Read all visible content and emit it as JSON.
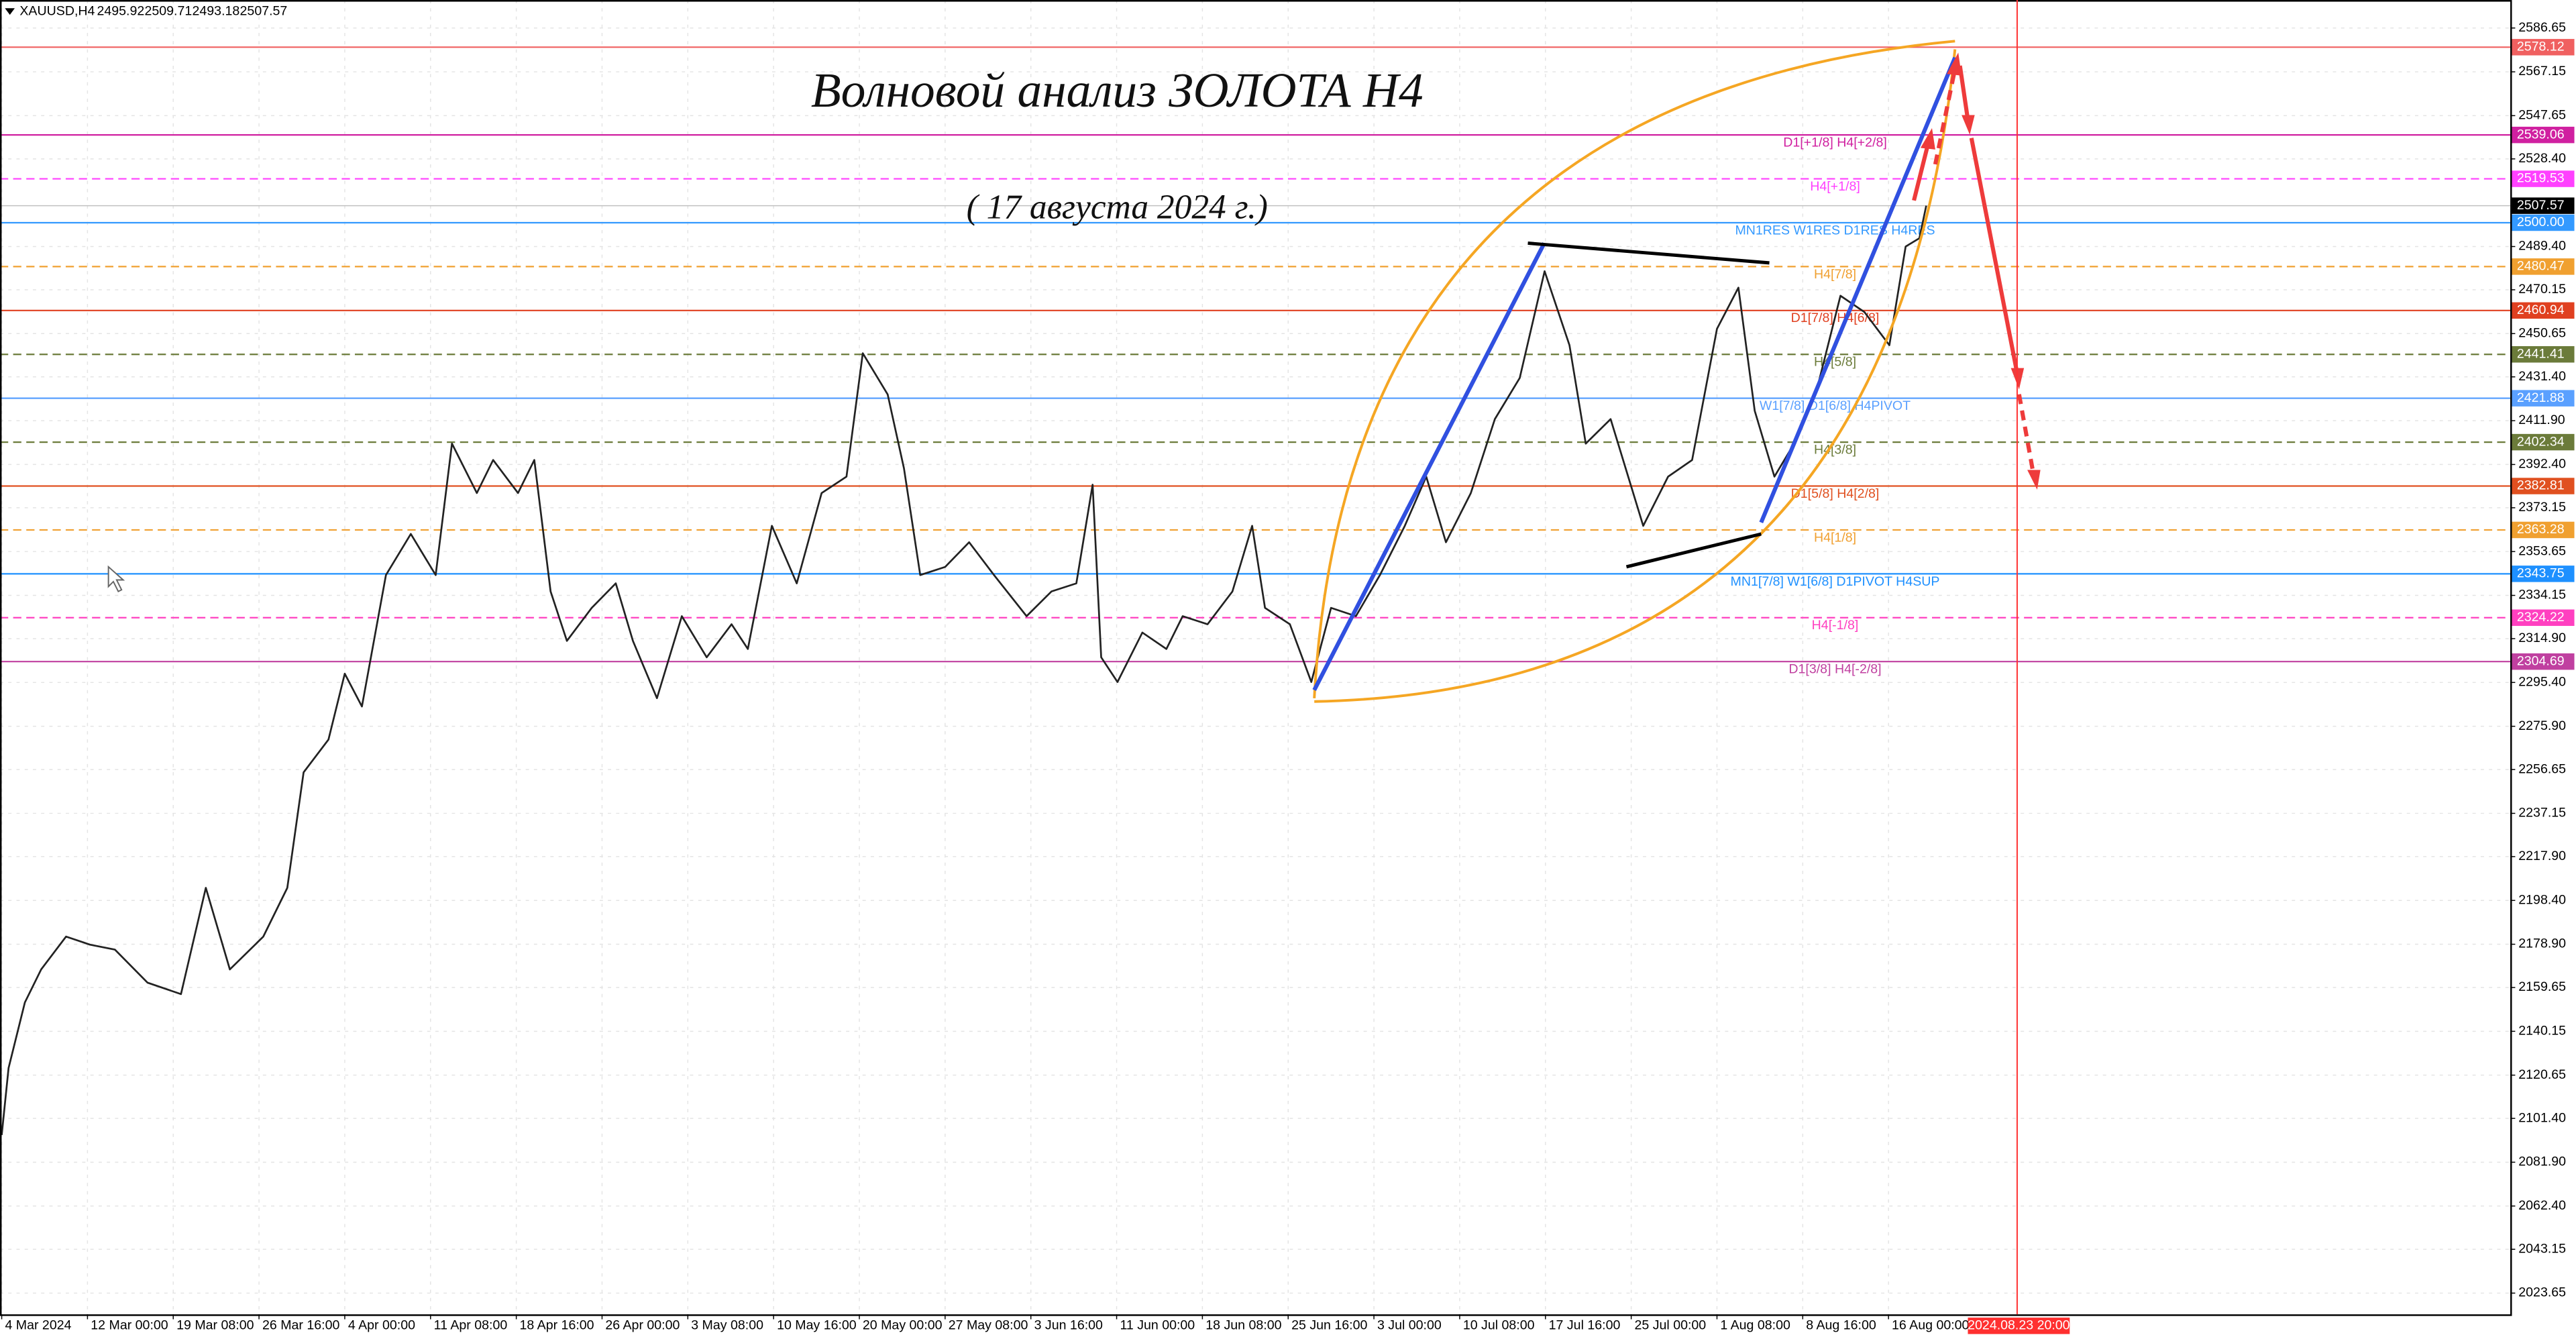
{
  "chart_data": {
    "type": "line",
    "symbol": "XAUUSD,H4",
    "ohlc": [
      2495.92,
      2509.71,
      2493.18,
      2507.57
    ],
    "title": "Волновой анализ ЗОЛОТА H4",
    "subtitle": "( 17 августа 2024 г.)",
    "xlim": [
      -0.02,
      29.25
    ],
    "ylim": [
      2014.2,
      2599.1
    ],
    "grid": true,
    "categories": [
      "4 Mar 2024",
      "12 Mar 00:00",
      "19 Mar 08:00",
      "26 Mar 16:00",
      "4 Apr 00:00",
      "11 Apr 08:00",
      "18 Apr 16:00",
      "26 Apr 00:00",
      "3 May 08:00",
      "10 May 16:00",
      "20 May 00:00",
      "27 May 08:00",
      "3 Jun 16:00",
      "11 Jun 00:00",
      "18 Jun 08:00",
      "25 Jun 16:00",
      "3 Jul 00:00",
      "10 Jul 08:00",
      "17 Jul 16:00",
      "25 Jul 00:00",
      "1 Aug 08:00",
      "8 Aug 16:00",
      "16 Aug 00:00"
    ],
    "marker": {
      "x": 23.5,
      "label": "2024.08.23 20:00",
      "color": "#ff3030"
    },
    "yticks": [
      2586.65,
      2567.15,
      2547.65,
      {
        "value": 2528.4,
        "label": "2528.40"
      },
      {
        "value": 2489.4,
        "label": "2489.40"
      },
      2470.15,
      2450.65,
      {
        "value": 2431.4,
        "label": "2431.40"
      },
      {
        "value": 2411.9,
        "label": "2411.90"
      },
      {
        "value": 2392.4,
        "label": "2392.40"
      },
      2373.15,
      2353.65,
      2334.15,
      {
        "value": 2314.9,
        "label": "2314.90"
      },
      {
        "value": 2295.4,
        "label": "2295.40"
      },
      {
        "value": 2275.9,
        "label": "2275.90"
      },
      2256.65,
      2237.15,
      {
        "value": 2217.9,
        "label": "2217.90"
      },
      {
        "value": 2198.4,
        "label": "2198.40"
      },
      {
        "value": 2178.9,
        "label": "2178.90"
      },
      2159.65,
      2140.15,
      2120.65,
      {
        "value": 2101.4,
        "label": "2101.40"
      },
      {
        "value": 2081.9,
        "label": "2081.90"
      },
      {
        "value": 2062.4,
        "label": "2062.40"
      },
      2043.15,
      2023.65
    ],
    "current_price": 2507.57,
    "levels": [
      {
        "value": 2578.12,
        "color": "#f06060",
        "dash": false
      },
      {
        "value": 2539.06,
        "color": "#d020a0",
        "dash": false,
        "text": "D1[+1/8] H4[+2/8]"
      },
      {
        "value": 2519.53,
        "color": "#ff40ff",
        "dash": true,
        "text": "H4[+1/8]"
      },
      {
        "value": 2500,
        "value_label": "2500.00",
        "color": "#3399ff",
        "dash": false,
        "text": "MN1RES W1RES D1RES H4RES"
      },
      {
        "value": 2480.47,
        "color": "#f0a030",
        "dash": true,
        "text": "H4[7/8]"
      },
      {
        "value": 2460.94,
        "color": "#e04020",
        "dash": false,
        "text": "D1[7/8] H4[6/8]"
      },
      {
        "value": 2441.41,
        "color": "#6b7b3a",
        "dash": true,
        "text": "H4[5/8]"
      },
      {
        "value": 2421.88,
        "color": "#5aa0ff",
        "dash": false,
        "text": "W1[7/8] D1[6/8] H4PIVOT"
      },
      {
        "value": 2402.34,
        "color": "#6b7b3a",
        "dash": true,
        "text": "H4[3/8]"
      },
      {
        "value": 2382.81,
        "color": "#e05020",
        "dash": false,
        "text": "D1[5/8] H4[2/8]"
      },
      {
        "value": 2363.28,
        "color": "#f0a030",
        "dash": true,
        "text": "H4[1/8]"
      },
      {
        "value": 2343.75,
        "color": "#1e90ff",
        "dash": false,
        "text": "MN1[7/8] W1[6/8] D1PIVOT H4SUP"
      },
      {
        "value": 2324.22,
        "color": "#ff40c0",
        "dash": true,
        "text": "H4[-1/8]"
      },
      {
        "value": 2304.69,
        "color": "#c040a0",
        "dash": false,
        "text": "D1[3/8] H4[-2/8]"
      }
    ],
    "series": [
      {
        "name": "XAUUSD",
        "color": "#222222",
        "x": [
          0,
          0.08,
          0.27,
          0.46,
          0.75,
          1.03,
          1.32,
          1.7,
          2.09,
          2.38,
          2.66,
          3.05,
          3.33,
          3.52,
          3.81,
          4.0,
          4.2,
          4.48,
          4.77,
          5.06,
          5.25,
          5.54,
          5.73,
          6.02,
          6.21,
          6.4,
          6.59,
          6.88,
          7.16,
          7.36,
          7.64,
          7.93,
          8.22,
          8.51,
          8.7,
          8.98,
          9.27,
          9.56,
          9.85,
          10.04,
          10.33,
          10.52,
          10.71,
          11.0,
          11.28,
          11.57,
          11.95,
          12.24,
          12.53,
          12.72,
          12.82,
          13.01,
          13.3,
          13.58,
          13.77,
          14.06,
          14.35,
          14.58,
          14.73,
          15.02,
          15.27,
          15.5,
          15.79,
          16.07,
          16.36,
          16.61,
          16.84,
          17.13,
          17.41,
          17.7,
          17.99,
          18.28,
          18.47,
          18.76,
          19.14,
          19.43,
          19.71,
          20.0,
          20.25,
          20.44,
          20.67,
          20.9,
          21.15,
          21.44,
          21.72,
          22.01,
          22.2,
          22.36,
          22.44
        ],
        "values": [
          2094,
          2123.8,
          2153,
          2167.7,
          2182.3,
          2178.7,
          2176.5,
          2161.8,
          2156.7,
          2204,
          2167.7,
          2182.3,
          2204,
          2255.4,
          2270,
          2299.3,
          2284.7,
          2343.2,
          2361.5,
          2343.2,
          2401.7,
          2379.7,
          2394.4,
          2379.7,
          2394.4,
          2335.9,
          2313.9,
          2328.6,
          2339.5,
          2313.9,
          2288.4,
          2324.9,
          2306.6,
          2321.3,
          2310.3,
          2365.1,
          2339.5,
          2379.7,
          2387,
          2441.9,
          2423.6,
          2390.7,
          2343.2,
          2346.8,
          2357.8,
          2343.2,
          2324.9,
          2335.9,
          2339.5,
          2383.4,
          2306.6,
          2295.6,
          2317.6,
          2310.3,
          2324.9,
          2321.3,
          2335.9,
          2365.1,
          2328.6,
          2321.3,
          2295.6,
          2328.6,
          2324.9,
          2343.2,
          2365.1,
          2387,
          2357.8,
          2379.7,
          2412.6,
          2430.9,
          2478.4,
          2445.5,
          2401.7,
          2412.6,
          2365.1,
          2387,
          2394.4,
          2452.8,
          2471.1,
          2416.3,
          2387,
          2401.7,
          2423.6,
          2467.5,
          2460.2,
          2445.5,
          2489.4,
          2493.1,
          2507.57
        ]
      }
    ]
  }
}
